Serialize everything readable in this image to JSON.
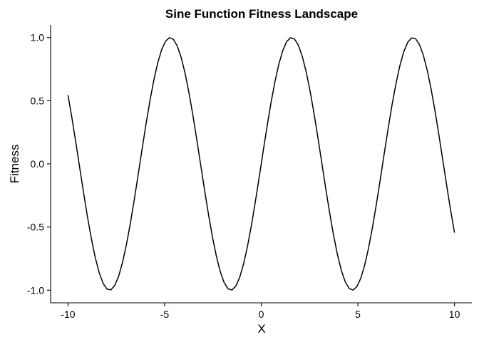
{
  "chart_data": {
    "type": "line",
    "title": "Sine Function Fitness Landscape",
    "xlabel": "X",
    "ylabel": "Fitness",
    "xlim": [
      -10.9,
      10.9
    ],
    "ylim": [
      -1.1,
      1.1
    ],
    "x_ticks": [
      -10,
      -5,
      0,
      5,
      10
    ],
    "x_tick_labels": [
      "-10",
      "-5",
      "0",
      "5",
      "10"
    ],
    "y_ticks": [
      -1.0,
      -0.5,
      0.0,
      0.5,
      1.0
    ],
    "y_tick_labels": [
      "-1.0",
      "-0.5",
      "0.0",
      "0.5",
      "1.0"
    ],
    "grid": false,
    "legend": "none",
    "series": [
      {
        "function": "sin(x)",
        "x_range": [
          -10,
          10
        ],
        "n_points": 100,
        "color": "#000000"
      }
    ]
  }
}
